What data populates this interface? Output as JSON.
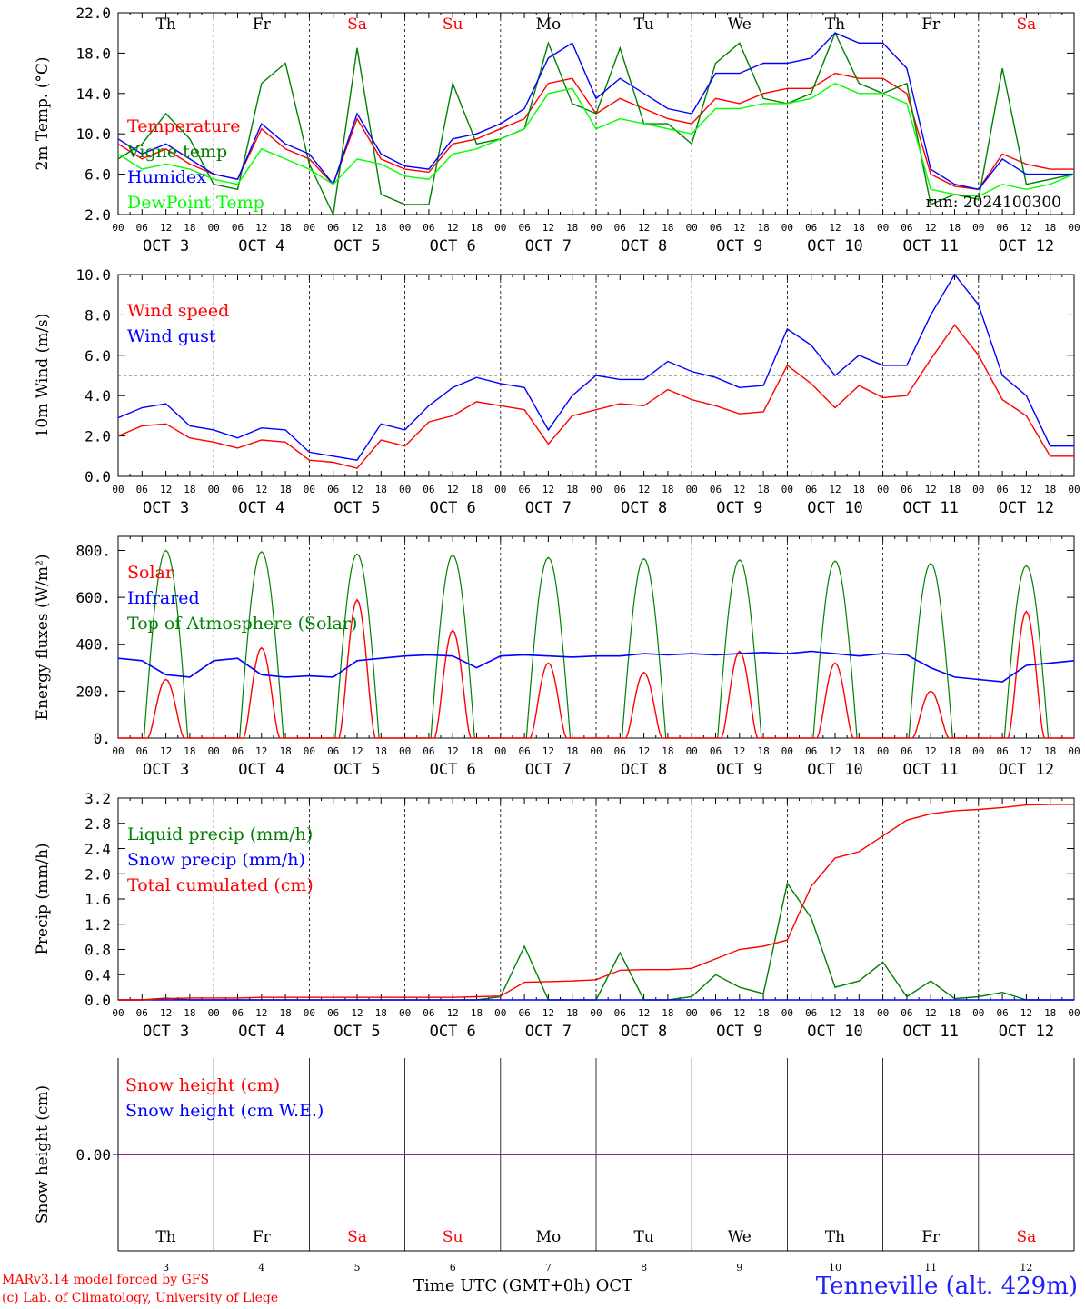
{
  "footer": {
    "model": "MARv3.14 model forced by GFS",
    "copyright": "(c) Lab. of Climatology, University of Liege",
    "xaxis_title": "Time UTC (GMT+0h) OCT",
    "station": "Tenneville (alt. 429m)"
  },
  "colors": {
    "red": "#ff0000",
    "green": "#008000",
    "blue": "#0000ff",
    "lightgreen": "#00ff00",
    "purple": "#800080"
  },
  "chart_data": [
    {
      "type": "line",
      "ylabel": "2m Temp. (°C)",
      "ylim": [
        2.0,
        22.0
      ],
      "yticks": [
        "2.0",
        "6.0",
        "10.0",
        "14.0",
        "18.0",
        "22.0"
      ],
      "annotation": "run: 2024100300",
      "day_labels": [
        "Th",
        "Fr",
        "Sa",
        "Su",
        "Mo",
        "Tu",
        "We",
        "Th",
        "Fr",
        "Sa"
      ],
      "date_labels": [
        "OCT 3",
        "OCT 4",
        "OCT 5",
        "OCT 6",
        "OCT 7",
        "OCT 8",
        "OCT 9",
        "OCT 10",
        "OCT 11",
        "OCT 12"
      ],
      "hour_ticks": [
        "00",
        "06",
        "12",
        "18"
      ],
      "x_hours": [
        0,
        6,
        12,
        18,
        24,
        30,
        36,
        42,
        48,
        54,
        60,
        66,
        72,
        78,
        84,
        90,
        96,
        102,
        108,
        114,
        120,
        126,
        132,
        138,
        144,
        150,
        156,
        162,
        168,
        174,
        180,
        186,
        192,
        198,
        204,
        210,
        216,
        222,
        228,
        234,
        240
      ],
      "series": [
        {
          "name": "Temperature",
          "color": "red",
          "values": [
            9.0,
            7.5,
            8.5,
            7.0,
            6.0,
            5.5,
            10.5,
            8.5,
            7.5,
            5.0,
            11.5,
            7.5,
            6.5,
            6.2,
            9.0,
            9.5,
            10.5,
            11.5,
            15.0,
            15.5,
            12.0,
            13.5,
            12.5,
            11.5,
            11.0,
            13.5,
            13.0,
            14.0,
            14.5,
            14.5,
            16.0,
            15.5,
            15.5,
            14.0,
            6.0,
            4.8,
            4.5,
            8.0,
            7.0,
            6.5,
            6.5
          ]
        },
        {
          "name": "Vigne temp",
          "color": "green",
          "values": [
            7.5,
            9.0,
            12.0,
            9.5,
            5.0,
            4.5,
            15.0,
            17.0,
            7.0,
            1.0,
            18.5,
            4.0,
            3.0,
            3.0,
            15.0,
            9.0,
            9.5,
            10.5,
            19.0,
            13.0,
            12.0,
            18.5,
            11.0,
            11.0,
            9.0,
            17.0,
            19.0,
            13.5,
            13.0,
            14.0,
            20.0,
            15.0,
            14.0,
            15.0,
            3.0,
            4.0,
            3.5,
            16.5,
            5.0,
            5.5,
            6.0
          ]
        },
        {
          "name": "Humidex",
          "color": "blue",
          "values": [
            9.5,
            8.0,
            9.0,
            7.5,
            6.0,
            5.5,
            11.0,
            9.0,
            8.0,
            5.0,
            12.0,
            8.0,
            6.8,
            6.5,
            9.5,
            10.0,
            11.0,
            12.5,
            17.5,
            19.0,
            13.5,
            15.5,
            14.0,
            12.5,
            12.0,
            16.0,
            16.0,
            17.0,
            17.0,
            17.5,
            20.0,
            19.0,
            19.0,
            16.5,
            6.5,
            5.0,
            4.5,
            7.5,
            6.0,
            6.0,
            6.0
          ]
        },
        {
          "name": "DewPoint Temp",
          "color": "lightgreen",
          "values": [
            8.0,
            6.5,
            7.0,
            6.5,
            5.5,
            5.0,
            8.5,
            7.5,
            6.5,
            5.0,
            7.5,
            7.0,
            5.8,
            5.5,
            8.0,
            8.5,
            9.5,
            10.5,
            14.0,
            14.5,
            10.5,
            11.5,
            11.0,
            10.5,
            10.0,
            12.5,
            12.5,
            13.0,
            13.0,
            13.5,
            15.0,
            14.0,
            14.0,
            13.0,
            4.5,
            4.0,
            3.8,
            5.0,
            4.5,
            5.0,
            6.0
          ]
        }
      ]
    },
    {
      "type": "line",
      "ylabel": "10m Wind (m/s)",
      "ylim": [
        0.0,
        10.0
      ],
      "yticks": [
        "0.0",
        "2.0",
        "4.0",
        "6.0",
        "8.0",
        "10.0"
      ],
      "reference_line": 5.0,
      "date_labels": [
        "OCT 3",
        "OCT 4",
        "OCT 5",
        "OCT 6",
        "OCT 7",
        "OCT 8",
        "OCT 9",
        "OCT 10",
        "OCT 11",
        "OCT 12"
      ],
      "hour_ticks": [
        "00",
        "06",
        "12",
        "18"
      ],
      "x_hours": [
        0,
        6,
        12,
        18,
        24,
        30,
        36,
        42,
        48,
        54,
        60,
        66,
        72,
        78,
        84,
        90,
        96,
        102,
        108,
        114,
        120,
        126,
        132,
        138,
        144,
        150,
        156,
        162,
        168,
        174,
        180,
        186,
        192,
        198,
        204,
        210,
        216,
        222,
        228,
        234,
        240
      ],
      "series": [
        {
          "name": "Wind speed",
          "color": "red",
          "values": [
            2.0,
            2.5,
            2.6,
            1.9,
            1.7,
            1.4,
            1.8,
            1.7,
            0.8,
            0.7,
            0.4,
            1.8,
            1.5,
            2.7,
            3.0,
            3.7,
            3.5,
            3.3,
            1.6,
            3.0,
            3.3,
            3.6,
            3.5,
            4.3,
            3.8,
            3.5,
            3.1,
            3.2,
            5.5,
            4.6,
            3.4,
            4.5,
            3.9,
            4.0,
            5.8,
            7.5,
            6.0,
            3.8,
            3.0,
            1.0,
            1.0
          ]
        },
        {
          "name": "Wind gust",
          "color": "blue",
          "values": [
            2.9,
            3.4,
            3.6,
            2.5,
            2.3,
            1.9,
            2.4,
            2.3,
            1.2,
            1.0,
            0.8,
            2.6,
            2.3,
            3.5,
            4.4,
            4.9,
            4.6,
            4.4,
            2.3,
            4.0,
            5.0,
            4.8,
            4.8,
            5.7,
            5.2,
            4.9,
            4.4,
            4.5,
            7.3,
            6.5,
            5.0,
            6.0,
            5.5,
            5.5,
            8.0,
            10.0,
            8.5,
            5.0,
            4.0,
            1.5,
            1.5
          ]
        }
      ]
    },
    {
      "type": "line",
      "ylabel": "Energy fluxes (W/m²)",
      "ylim": [
        0,
        860
      ],
      "yticks": [
        "0.",
        "200.",
        "400.",
        "600.",
        "800."
      ],
      "date_labels": [
        "OCT 3",
        "OCT 4",
        "OCT 5",
        "OCT 6",
        "OCT 7",
        "OCT 8",
        "OCT 9",
        "OCT 10",
        "OCT 11",
        "OCT 12"
      ],
      "hour_ticks": [
        "00",
        "06",
        "12",
        "18"
      ],
      "solar_peaks": [
        250,
        385,
        590,
        460,
        320,
        280,
        370,
        320,
        200,
        540
      ],
      "toa_peaks": [
        800,
        795,
        785,
        780,
        770,
        765,
        760,
        755,
        745,
        735
      ],
      "infrared_hourly_6h": [
        340,
        330,
        270,
        260,
        330,
        340,
        270,
        260,
        265,
        260,
        330,
        340,
        350,
        355,
        350,
        300,
        350,
        355,
        350,
        345,
        350,
        350,
        360,
        355,
        360,
        355,
        360,
        365,
        360,
        370,
        360,
        350,
        360,
        355,
        300,
        260,
        250,
        240,
        310,
        320,
        330
      ],
      "series": [
        {
          "name": "Solar",
          "color": "red"
        },
        {
          "name": "Infrared",
          "color": "blue"
        },
        {
          "name": "Top of Atmosphere (Solar)",
          "color": "green"
        }
      ]
    },
    {
      "type": "line",
      "ylabel": "Precip (mm/h)",
      "ylim": [
        0.0,
        3.2
      ],
      "yticks": [
        "0.0",
        "0.4",
        "0.8",
        "1.2",
        "1.6",
        "2.0",
        "2.4",
        "2.8",
        "3.2"
      ],
      "date_labels": [
        "OCT 3",
        "OCT 4",
        "OCT 5",
        "OCT 6",
        "OCT 7",
        "OCT 8",
        "OCT 9",
        "OCT 10",
        "OCT 11",
        "OCT 12"
      ],
      "hour_ticks": [
        "00",
        "06",
        "12",
        "18"
      ],
      "x_hours": [
        0,
        6,
        12,
        18,
        24,
        30,
        36,
        42,
        48,
        54,
        60,
        66,
        72,
        78,
        84,
        90,
        96,
        102,
        108,
        114,
        120,
        126,
        132,
        138,
        144,
        150,
        156,
        162,
        168,
        174,
        180,
        186,
        192,
        198,
        204,
        210,
        216,
        222,
        228,
        234,
        240
      ],
      "series": [
        {
          "name": "Liquid precip (mm/h)",
          "color": "green",
          "values": [
            0,
            0,
            0.03,
            0,
            0,
            0,
            0,
            0,
            0,
            0,
            0,
            0,
            0,
            0,
            0,
            0,
            0.05,
            0.85,
            0,
            0,
            0,
            0.75,
            0,
            0,
            0.05,
            0.4,
            0.2,
            0.1,
            1.85,
            1.3,
            0.2,
            0.3,
            0.6,
            0.05,
            0.3,
            0.02,
            0.05,
            0.12,
            0,
            0,
            0
          ]
        },
        {
          "name": "Snow precip (mm/h)",
          "color": "blue",
          "values": [
            0,
            0,
            0,
            0,
            0,
            0,
            0,
            0,
            0,
            0,
            0,
            0,
            0,
            0,
            0,
            0,
            0,
            0,
            0,
            0,
            0,
            0,
            0,
            0,
            0,
            0,
            0,
            0,
            0,
            0,
            0,
            0,
            0,
            0,
            0,
            0,
            0,
            0,
            0,
            0,
            0
          ]
        },
        {
          "name": "Total cumulated (cm)",
          "color": "red",
          "values": [
            0,
            0,
            0.02,
            0.03,
            0.03,
            0.03,
            0.04,
            0.04,
            0.04,
            0.04,
            0.04,
            0.04,
            0.04,
            0.04,
            0.04,
            0.05,
            0.06,
            0.28,
            0.29,
            0.3,
            0.32,
            0.47,
            0.48,
            0.48,
            0.5,
            0.65,
            0.8,
            0.85,
            0.95,
            1.8,
            2.25,
            2.35,
            2.6,
            2.85,
            2.95,
            3.0,
            3.02,
            3.05,
            3.09,
            3.1,
            3.1
          ]
        }
      ]
    },
    {
      "type": "line",
      "ylabel": "Snow height (cm)",
      "yticks": [
        "0.00"
      ],
      "day_labels": [
        "Th",
        "Fr",
        "Sa",
        "Su",
        "Mo",
        "Tu",
        "We",
        "Th",
        "Fr",
        "Sa"
      ],
      "day_numbers": [
        "3",
        "4",
        "5",
        "6",
        "7",
        "8",
        "9",
        "10",
        "11",
        "12"
      ],
      "series": [
        {
          "name": "Snow height (cm)",
          "color": "red",
          "values": [
            0,
            0
          ]
        },
        {
          "name": "Snow height (cm W.E.)",
          "color": "blue",
          "values": [
            0,
            0
          ]
        }
      ]
    }
  ]
}
